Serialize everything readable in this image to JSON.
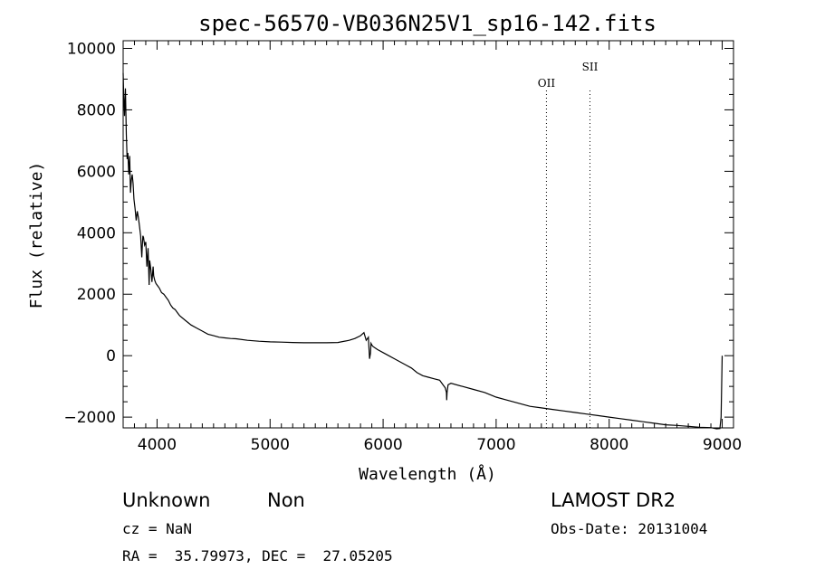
{
  "chart_data": {
    "type": "line",
    "title": "spec-56570-VB036N25V1_sp16-142.fits",
    "xlabel": "Wavelength (Å)",
    "ylabel": "Flux (relative)",
    "xlim": [
      3700,
      9100
    ],
    "ylim": [
      -2350,
      10250
    ],
    "xticks": [
      4000,
      5000,
      6000,
      7000,
      8000,
      9000
    ],
    "yticks": [
      -2000,
      0,
      2000,
      4000,
      6000,
      8000,
      10000
    ],
    "xtick_labels": [
      "4000",
      "5000",
      "6000",
      "7000",
      "8000",
      "9000"
    ],
    "ytick_labels": [
      "−2000",
      "0",
      "2000",
      "4000",
      "6000",
      "8000",
      "10000"
    ],
    "series": [
      {
        "x": [
          3700,
          3705,
          3712,
          3720,
          3728,
          3735,
          3742,
          3750,
          3758,
          3765,
          3772,
          3780,
          3788,
          3795,
          3805,
          3815,
          3825,
          3835,
          3845,
          3855,
          3865,
          3870,
          3875,
          3880,
          3890,
          3900,
          3910,
          3920,
          3930,
          3935,
          3945,
          3955,
          3965,
          3970,
          3980,
          3990,
          4000,
          4020,
          4040,
          4060,
          4080,
          4100,
          4120,
          4140,
          4160,
          4180,
          4200,
          4250,
          4300,
          4350,
          4400,
          4450,
          4500,
          4550,
          4600,
          4650,
          4700,
          4800,
          4900,
          5000,
          5100,
          5200,
          5300,
          5400,
          5500,
          5600,
          5700,
          5750,
          5800,
          5830,
          5850,
          5870,
          5880,
          5888,
          5893,
          5900,
          5910,
          5950,
          6000,
          6050,
          6100,
          6150,
          6200,
          6250,
          6300,
          6350,
          6400,
          6450,
          6500,
          6530,
          6550,
          6560,
          6563,
          6566,
          6575,
          6600,
          6700,
          6800,
          6900,
          7000,
          7100,
          7200,
          7300,
          7400,
          7500,
          7600,
          7700,
          7800,
          7900,
          8000,
          8100,
          8200,
          8300,
          8400,
          8500,
          8600,
          8700,
          8800,
          8900,
          8950,
          8980,
          8990,
          8995,
          9000
        ],
        "y": [
          9200,
          8500,
          7800,
          8700,
          7200,
          6400,
          6600,
          5900,
          6500,
          5300,
          5700,
          5900,
          5600,
          5100,
          4800,
          4400,
          4700,
          4500,
          4200,
          3900,
          3200,
          3600,
          3900,
          3850,
          3600,
          3700,
          2900,
          3500,
          2300,
          3100,
          2800,
          2400,
          2900,
          2600,
          2450,
          2350,
          2300,
          2200,
          2050,
          2000,
          1900,
          1800,
          1650,
          1550,
          1500,
          1400,
          1300,
          1150,
          1000,
          900,
          800,
          700,
          650,
          600,
          580,
          560,
          550,
          500,
          470,
          450,
          440,
          430,
          420,
          420,
          420,
          430,
          500,
          560,
          650,
          750,
          500,
          600,
          -100,
          80,
          400,
          350,
          300,
          200,
          100,
          0,
          -100,
          -200,
          -300,
          -400,
          -550,
          -650,
          -700,
          -750,
          -800,
          -950,
          -1050,
          -1200,
          -1450,
          -1200,
          -950,
          -900,
          -1000,
          -1100,
          -1200,
          -1350,
          -1450,
          -1550,
          -1650,
          -1700,
          -1750,
          -1800,
          -1850,
          -1900,
          -1950,
          -2000,
          -2050,
          -2100,
          -2150,
          -2200,
          -2250,
          -2270,
          -2300,
          -2330,
          -2340,
          -2380,
          -2370,
          -2000,
          -1000,
          0
        ]
      }
    ],
    "lines": [
      {
        "label": "OII",
        "x": 7445
      },
      {
        "label": "SII",
        "x": 7830
      }
    ]
  },
  "footer": {
    "class_label": "Unknown",
    "subclass_label": "Non",
    "cz_label": "cz = NaN",
    "coords_label": "RA =  35.79973, DEC =  27.05205",
    "survey_label": "LAMOST DR2",
    "obsdate_label": "Obs-Date: 20131004"
  }
}
